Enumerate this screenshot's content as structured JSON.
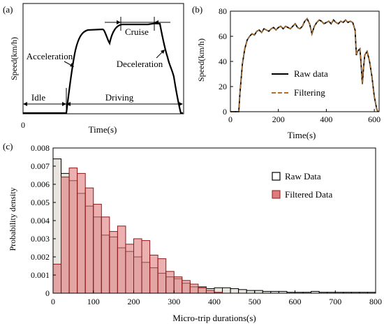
{
  "chart_data": [
    {
      "panel": "(a)",
      "type": "line",
      "xlabel": "Time(s)",
      "ylabel": "Speed(km/h)",
      "x_ticks": [
        "0"
      ],
      "annotations": [
        "Idle",
        "Driving",
        "Acceleration",
        "Cruise",
        "Deceleration"
      ],
      "grid": false
    },
    {
      "panel": "(b)",
      "type": "line",
      "xlabel": "Time(s)",
      "ylabel": "Speed(km/h)",
      "xlim": [
        0,
        620
      ],
      "ylim": [
        0,
        80
      ],
      "x_ticks": [
        0,
        200,
        400,
        600
      ],
      "y_ticks": [
        0,
        20,
        40,
        60,
        80
      ],
      "legend": "center-right",
      "grid": false,
      "series": [
        {
          "name": "Raw data",
          "color": "#000000",
          "style": "solid"
        },
        {
          "name": "Filtering",
          "color": "#b0702a",
          "style": "dashed"
        }
      ],
      "x": [
        0,
        35,
        40,
        50,
        60,
        70,
        80,
        90,
        100,
        110,
        120,
        130,
        140,
        150,
        160,
        170,
        180,
        190,
        200,
        210,
        220,
        230,
        240,
        250,
        260,
        270,
        280,
        290,
        300,
        310,
        320,
        330,
        340,
        350,
        360,
        370,
        380,
        390,
        400,
        410,
        420,
        430,
        440,
        450,
        460,
        470,
        480,
        490,
        500,
        510,
        520,
        525,
        530,
        540,
        545,
        550,
        555,
        560,
        570,
        580,
        590,
        600,
        610,
        615
      ],
      "values": [
        0,
        0,
        15,
        38,
        50,
        57,
        60,
        62,
        61,
        64,
        65,
        63,
        66,
        65,
        64,
        66,
        67,
        65,
        67,
        68,
        66,
        68,
        67,
        66,
        68,
        70,
        67,
        66,
        68,
        72,
        74,
        70,
        62,
        68,
        71,
        73,
        72,
        70,
        71,
        72,
        70,
        73,
        71,
        70,
        72,
        71,
        73,
        71,
        72,
        71,
        65,
        45,
        48,
        50,
        38,
        22,
        35,
        45,
        48,
        40,
        28,
        12,
        2,
        0
      ]
    },
    {
      "panel": "(c)",
      "type": "bar",
      "xlabel": "Micro-trip durations(s)",
      "ylabel": "Probability density",
      "xlim": [
        0,
        800
      ],
      "ylim": [
        0,
        0.008
      ],
      "x_ticks": [
        0,
        100,
        200,
        300,
        400,
        500,
        600,
        700,
        800
      ],
      "y_ticks": [
        "0",
        "0.001",
        "0.002",
        "0.003",
        "0.004",
        "0.005",
        "0.006",
        "0.007",
        "0.008"
      ],
      "bin_width": 20,
      "legend": "top-right",
      "grid": false,
      "series": [
        {
          "name": "Raw Data",
          "color": "#d9d9d9",
          "bin_start": 0,
          "values": [
            0.0074,
            0.0066,
            0.0062,
            0.0055,
            0.0048,
            0.0042,
            0.0032,
            0.0031,
            0.0025,
            0.0023,
            0.002,
            0.0017,
            0.0014,
            0.0011,
            0.0009,
            0.0008,
            0.00055,
            0.00035,
            0.00035,
            0.00025,
            0.0003,
            0.0003,
            0.00025,
            0.0002,
            0.00015,
            0.00015,
            0.0001,
            0.0001,
            0.0001,
            5e-05,
            5e-05,
            5e-05,
            0.0001,
            5e-05,
            5e-05,
            5e-05,
            5e-05,
            5e-05,
            5e-05,
            5e-05
          ]
        },
        {
          "name": "Filtered Data",
          "color": "#e07b7b",
          "bin_start": 0,
          "values": [
            0.0016,
            0.0064,
            0.0069,
            0.0066,
            0.0058,
            0.0049,
            0.0042,
            0.0034,
            0.0037,
            0.0027,
            0.003,
            0.0029,
            0.0021,
            0.0019,
            0.0012,
            0.0009,
            0.0007,
            0.0005,
            0.0003,
            0.00015,
            5e-05,
            0,
            0,
            0,
            0,
            0,
            0,
            0,
            0,
            0,
            0,
            0,
            0,
            0,
            0,
            0,
            0,
            0,
            0,
            0
          ]
        }
      ]
    }
  ]
}
